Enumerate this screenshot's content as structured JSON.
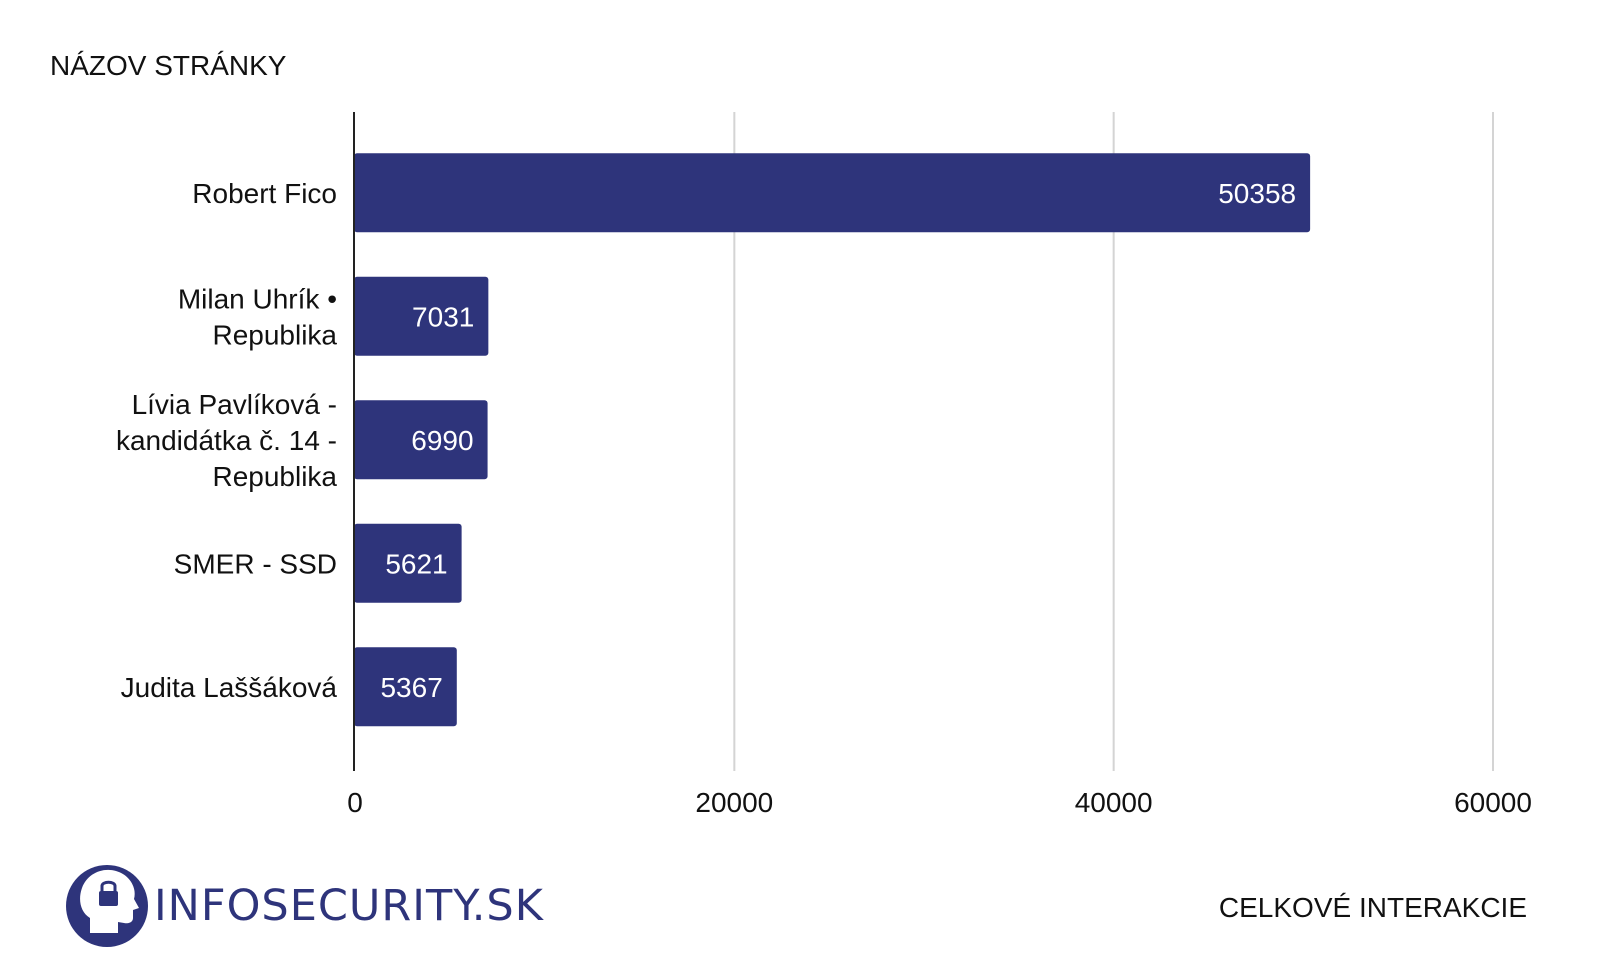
{
  "chart_data": {
    "type": "bar",
    "orientation": "horizontal",
    "ylabel": "NÁZOV STRÁNKY",
    "xlabel": "CELKOVÉ INTERAKCIE",
    "categories": [
      [
        "Robert Fico"
      ],
      [
        "Milan Uhrík •",
        "Republika"
      ],
      [
        "Lívia Pavlíková -",
        "kandidátka č. 14 -",
        "Republika"
      ],
      [
        "SMER - SSD"
      ],
      [
        "Judita Laššáková"
      ]
    ],
    "values": [
      50358,
      7031,
      6990,
      5621,
      5367
    ],
    "xlim": [
      0,
      60000
    ],
    "xticks": [
      0,
      20000,
      40000,
      60000
    ],
    "grid": "vertical",
    "data_labels": "inside-end"
  },
  "brand": {
    "name": "INFOSECURITY.SK",
    "logo_icon": "head-with-padlock-icon"
  },
  "colors": {
    "bar": "#2e347b",
    "brand": "#2e347b",
    "grid": "#d4d4d4",
    "axis": "#222222"
  }
}
